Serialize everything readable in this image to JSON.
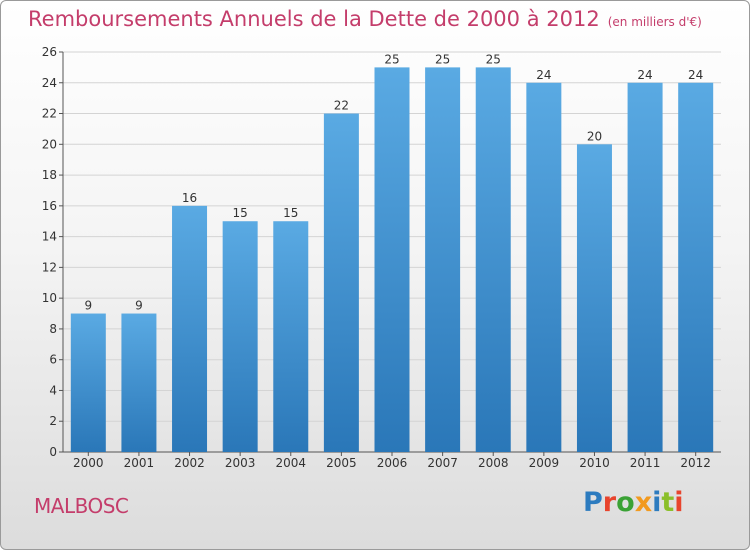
{
  "header": {
    "title": "Remboursements Annuels de la Dette de 2000 à 2012",
    "unit": "(en milliers d'€)"
  },
  "footer": {
    "place": "MALBOSC"
  },
  "brand": {
    "name": "Proxiti",
    "letter_colors": [
      "#2c7bbf",
      "#e8442d",
      "#3aa235",
      "#f29a1f",
      "#2c7bbf",
      "#8bbf2a",
      "#e8442d"
    ]
  },
  "colors": {
    "bar_light": "#5aaae3",
    "bar_dark": "#2a77b8",
    "title": "#c43d6b",
    "grid": "#d4d4d4"
  },
  "chart_data": {
    "type": "bar",
    "title": "Remboursements Annuels de la Dette de 2000 à 2012",
    "unit": "(en milliers d'€)",
    "categories": [
      "2000",
      "2001",
      "2002",
      "2003",
      "2004",
      "2005",
      "2006",
      "2007",
      "2008",
      "2009",
      "2010",
      "2011",
      "2012"
    ],
    "values": [
      9,
      9,
      16,
      15,
      15,
      22,
      25,
      25,
      25,
      24,
      20,
      24,
      24
    ],
    "ylim": [
      0,
      26
    ],
    "yticks": [
      0,
      2,
      4,
      6,
      8,
      10,
      12,
      14,
      16,
      18,
      20,
      22,
      24,
      26
    ],
    "grid": true,
    "data_labels": true
  }
}
